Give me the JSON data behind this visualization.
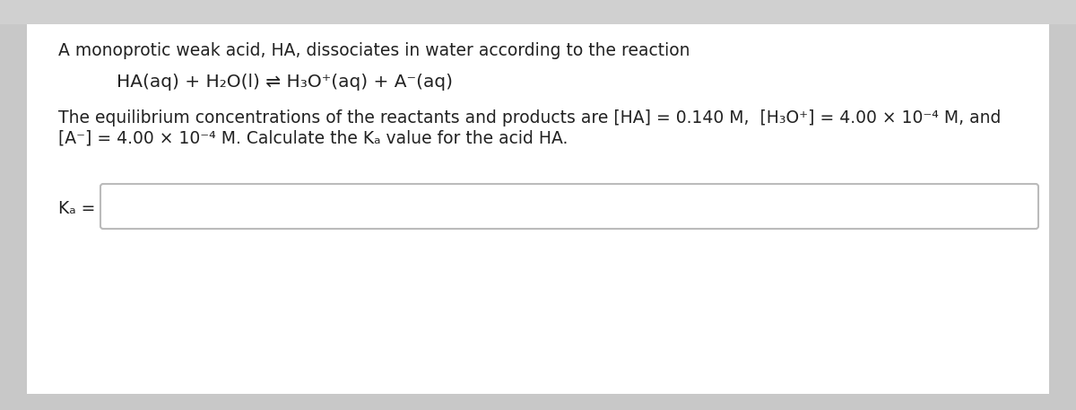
{
  "bg_outer": "#c8c8c8",
  "bg_card": "#f5f5f5",
  "bg_white": "#ffffff",
  "header_bg": "#e0e0e0",
  "text_color": "#222222",
  "border_color": "#bbbbbb",
  "line0": "A monoprotic weak acid, HA, dissociates in water according to the reaction",
  "line1": "HA(aq) + H₂O(l) ⇌ H₃O⁺(aq) + A⁻(aq)",
  "line2a": "The equilibrium concentrations of the reactants and products are [HA] = 0.140 M,  [H₃O⁺] = 4.00 × 10⁻⁴ M, and",
  "line2b": "[A⁻] = 4.00 × 10⁻⁴ M. Calculate the Kₐ value for the acid HA.",
  "ka_label": "Kₐ =",
  "font_size": 13.5,
  "font_size_reaction": 14.5
}
